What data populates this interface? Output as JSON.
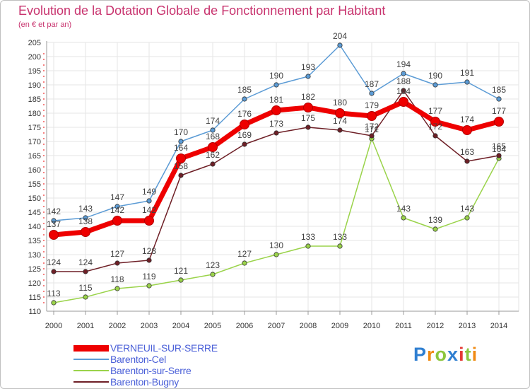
{
  "header": {
    "title": "Evolution de la Dotation Globale de Fonctionnement par Habitant",
    "subtitle": "(en € et par an)"
  },
  "chart_data": {
    "type": "line",
    "title": "Evolution de la Dotation Globale de Fonctionnement par Habitant",
    "subtitle": "(en € et par an)",
    "xlabel": "",
    "ylabel": "",
    "x": [
      "2000",
      "2001",
      "2002",
      "2003",
      "2004",
      "2005",
      "2006",
      "2007",
      "2008",
      "2009",
      "2010",
      "2011",
      "2012",
      "2013",
      "2014"
    ],
    "ylim": [
      110,
      205
    ],
    "yticks": [
      110,
      115,
      120,
      125,
      130,
      135,
      140,
      145,
      150,
      155,
      160,
      165,
      170,
      175,
      180,
      185,
      190,
      195,
      200,
      205
    ],
    "grid": true,
    "legend_position": "bottom-left",
    "series": [
      {
        "name": "Barenton-Cel",
        "color": "#5b9bd5",
        "values": [
          142,
          143,
          147,
          149,
          170,
          174,
          185,
          190,
          193,
          204,
          187,
          194,
          190,
          191,
          185
        ]
      },
      {
        "name": "Barenton-sur-Serre",
        "color": "#9ad34a",
        "values": [
          113,
          115,
          118,
          119,
          121,
          123,
          127,
          130,
          133,
          133,
          171,
          143,
          139,
          143,
          164
        ]
      },
      {
        "name": "Barenton-Bugny",
        "color": "#6e1f26",
        "values": [
          124,
          124,
          127,
          128,
          158,
          162,
          169,
          173,
          175,
          174,
          172,
          188,
          172,
          163,
          165
        ]
      },
      {
        "name": "VERNEUIL-SUR-SERRE",
        "color": "#ee0000",
        "values": [
          137,
          138,
          142,
          142,
          164,
          168,
          176,
          181,
          182,
          180,
          179,
          184,
          177,
          174,
          177
        ]
      }
    ]
  },
  "legend": {
    "items": [
      {
        "label": "VERNEUIL-SUR-SERRE",
        "color": "#ee0000"
      },
      {
        "label": "Barenton-Cel",
        "color": "#5b9bd5"
      },
      {
        "label": "Barenton-sur-Serre",
        "color": "#9ad34a"
      },
      {
        "label": "Barenton-Bugny",
        "color": "#6e1f26"
      }
    ]
  },
  "logo": {
    "letters": [
      "P",
      "r",
      "o",
      "x",
      "i",
      "t",
      "i"
    ],
    "colors": [
      "#2f7fd1",
      "#f08a12",
      "#8cc63e",
      "#2f7fd1",
      "#e53935",
      "#8cc63e",
      "#f08a12"
    ]
  }
}
